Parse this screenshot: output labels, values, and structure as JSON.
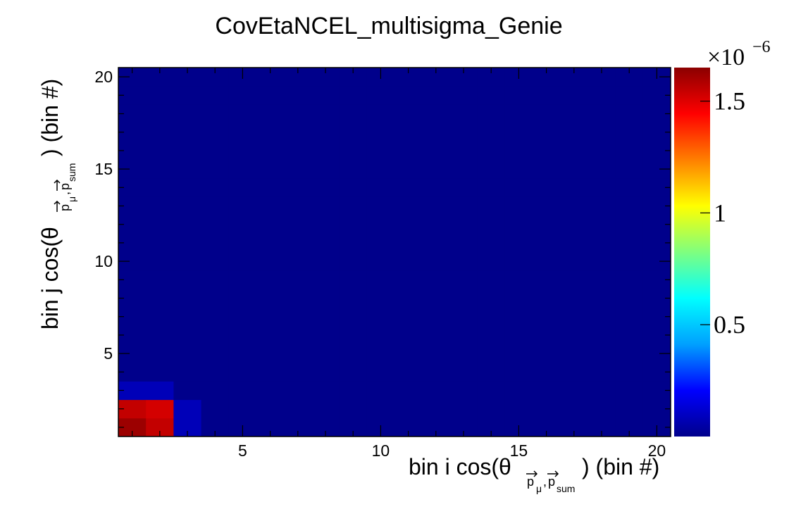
{
  "chart_data": {
    "type": "heatmap",
    "title": "CovEtaNCEL_multisigma_Genie",
    "xlabel_prefix": "bin i cos(θ",
    "xlabel_suffix": ") (bin #)",
    "ylabel_prefix": "bin j cos(θ",
    "ylabel_suffix": ") (bin #)",
    "axis_subscript": {
      "p1": "p",
      "mu": "μ",
      "sep": ",",
      "p2": "p",
      "sum": "sum"
    },
    "x_range": [
      0.5,
      20.5
    ],
    "y_range": [
      0.5,
      20.5
    ],
    "x_ticks": [
      5,
      10,
      15,
      20
    ],
    "y_ticks": [
      5,
      10,
      15,
      20
    ],
    "nbins_x": 20,
    "nbins_y": 20,
    "z_range": [
      0.0,
      1.65e-06
    ],
    "colorbar_ticks": [
      {
        "value": 5e-07,
        "label": "0.5"
      },
      {
        "value": 1e-06,
        "label": "1"
      },
      {
        "value": 1.5e-06,
        "label": "1.5"
      }
    ],
    "colorbar_exponent_base": "×10",
    "colorbar_exponent": "−6",
    "background_value": 0.0,
    "cells": [
      {
        "i": 1,
        "j": 1,
        "value": 1.62e-06
      },
      {
        "i": 2,
        "j": 1,
        "value": 1.55e-06
      },
      {
        "i": 1,
        "j": 2,
        "value": 1.55e-06
      },
      {
        "i": 2,
        "j": 2,
        "value": 1.52e-06
      },
      {
        "i": 3,
        "j": 1,
        "value": 8e-08
      },
      {
        "i": 3,
        "j": 2,
        "value": 8e-08
      },
      {
        "i": 1,
        "j": 3,
        "value": 8e-08
      },
      {
        "i": 2,
        "j": 3,
        "value": 8e-08
      }
    ],
    "colormap": [
      "#00008b",
      "#0000ff",
      "#00a0ff",
      "#00ffff",
      "#7fff7f",
      "#ffff00",
      "#ff7f00",
      "#ff0000",
      "#8b0000"
    ]
  }
}
